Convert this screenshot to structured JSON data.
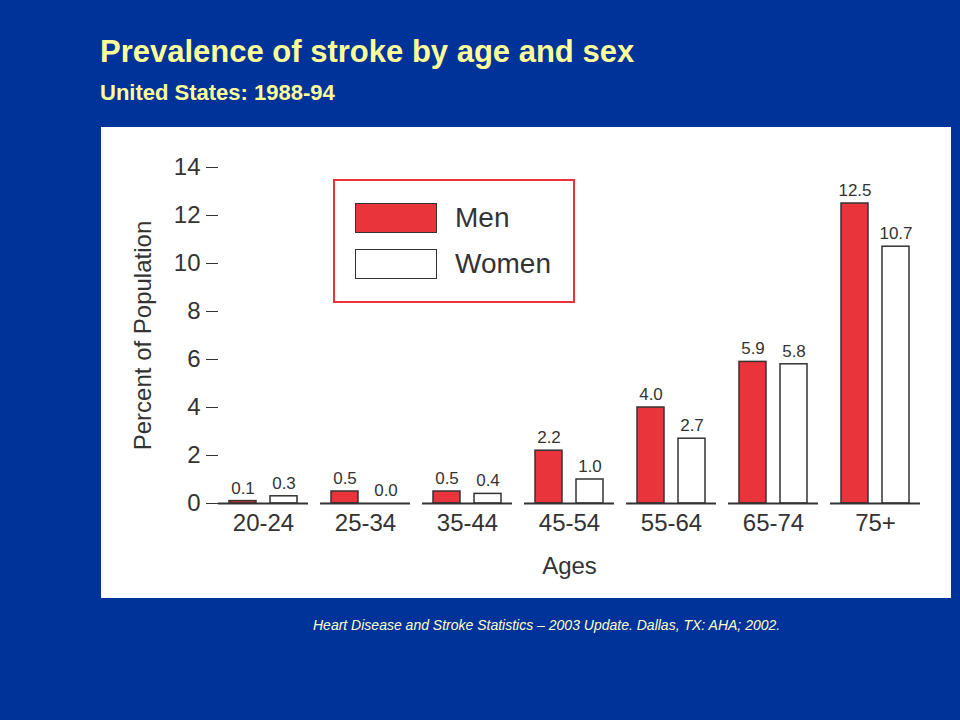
{
  "chart_data": {
    "type": "bar",
    "title": "Prevalence of stroke by age and sex",
    "subtitle": "United States: 1988-94",
    "caption": "Heart Disease and Stroke Statistics – 2003 Update. Dallas, TX: AHA; 2002.",
    "x_label": "Ages",
    "y_label": "Percent of Population",
    "categories": [
      "20-24",
      "25-34",
      "35-44",
      "45-54",
      "55-64",
      "65-74",
      "75+"
    ],
    "series": [
      {
        "name": "Men",
        "color": "#e8343a",
        "values": [
          0.1,
          0.5,
          0.5,
          2.2,
          4.0,
          5.9,
          12.5
        ],
        "value_labels": [
          "0.1",
          "0.5",
          "0.5",
          "2.2",
          "4.0",
          "5.9",
          "12.5"
        ]
      },
      {
        "name": "Women",
        "color": "#ffffff",
        "values": [
          0.3,
          0.0,
          0.4,
          1.0,
          2.7,
          5.8,
          10.7
        ],
        "value_labels": [
          "0.3",
          "0.0",
          "0.4",
          "1.0",
          "2.7",
          "5.8",
          "10.7"
        ]
      }
    ],
    "ylim": [
      0,
      14
    ],
    "yticks": [
      0,
      2,
      4,
      6,
      8,
      10,
      12,
      14
    ],
    "data_labels": true,
    "legend": "top-left",
    "grid": false
  }
}
